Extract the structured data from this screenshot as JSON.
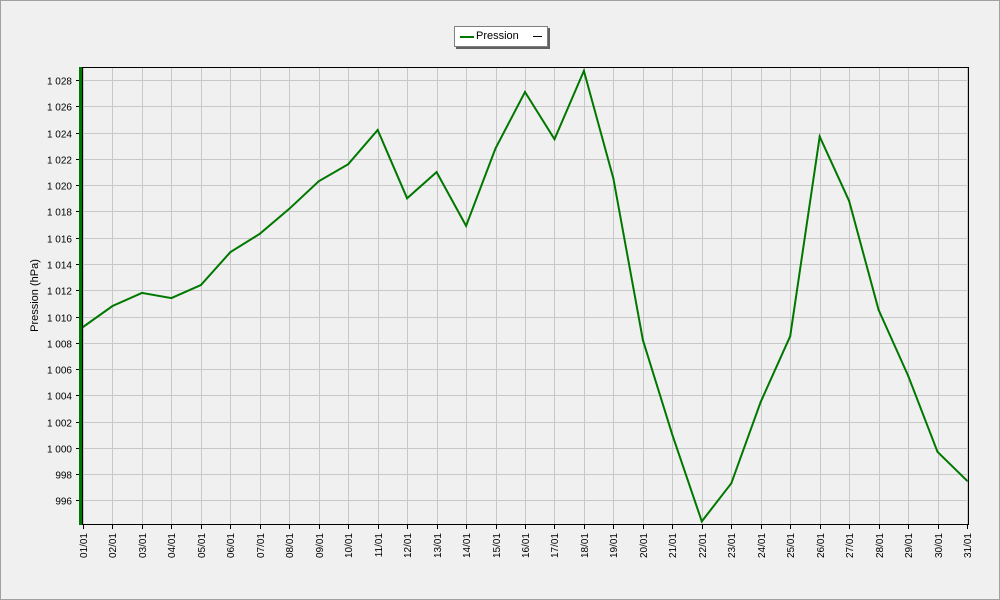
{
  "chart_data": {
    "type": "line",
    "title": "",
    "xlabel": "",
    "ylabel": "Pression (hPa)",
    "ylim": [
      994.2,
      1029.0
    ],
    "y_ticks": [
      996,
      998,
      1000,
      1002,
      1004,
      1006,
      1008,
      1010,
      1012,
      1014,
      1016,
      1018,
      1020,
      1022,
      1024,
      1026,
      1028
    ],
    "y_tick_labels": [
      "996",
      "998",
      "1 000",
      "1 002",
      "1 004",
      "1 006",
      "1 008",
      "1 010",
      "1 012",
      "1 014",
      "1 016",
      "1 018",
      "1 020",
      "1 022",
      "1 024",
      "1 026",
      "1 028"
    ],
    "categories": [
      "01/01",
      "02/01",
      "03/01",
      "04/01",
      "05/01",
      "06/01",
      "07/01",
      "08/01",
      "09/01",
      "10/01",
      "11/01",
      "12/01",
      "13/01",
      "14/01",
      "15/01",
      "16/01",
      "17/01",
      "18/01",
      "19/01",
      "20/01",
      "21/01",
      "22/01",
      "23/01",
      "24/01",
      "25/01",
      "26/01",
      "27/01",
      "28/01",
      "29/01",
      "30/01",
      "31/01"
    ],
    "series": [
      {
        "name": "Pression",
        "color": "#007800",
        "values": [
          1009.2,
          1010.8,
          1011.8,
          1011.4,
          1012.4,
          1014.9,
          1016.3,
          1018.2,
          1020.3,
          1021.6,
          1024.2,
          1019.0,
          1021.0,
          1016.9,
          1022.8,
          1027.1,
          1023.5,
          1028.7,
          1020.5,
          1008.2,
          1001.0,
          994.4,
          997.3,
          1003.5,
          1008.5,
          1023.7,
          1018.8,
          1010.5,
          1005.5,
          999.7,
          997.5
        ]
      }
    ],
    "grid": true,
    "legend_position": "top"
  }
}
